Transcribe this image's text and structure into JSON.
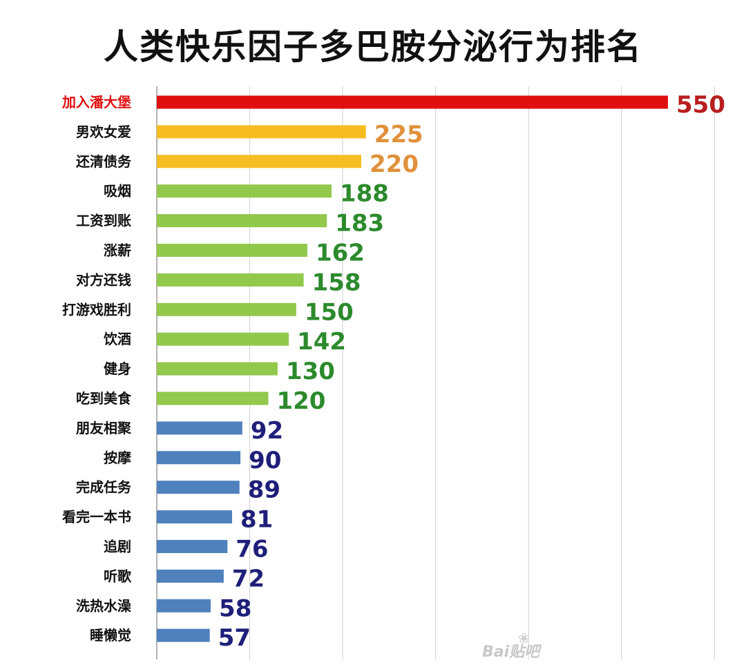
{
  "chart_data": {
    "type": "bar",
    "orientation": "horizontal",
    "title": "人类快乐因子多巴胺分泌行为排名",
    "categories": [
      "加入潘大堡",
      "男欢女爱",
      "还清债务",
      "吸烟",
      "工资到账",
      "涨薪",
      "对方还钱",
      "打游戏胜利",
      "饮酒",
      "健身",
      "吃到美食",
      "朋友相聚",
      "按摩",
      "完成任务",
      "看完一本书",
      "追剧",
      "听歌",
      "洗热水澡",
      "睡懒觉"
    ],
    "values": [
      550,
      225,
      220,
      188,
      183,
      162,
      158,
      150,
      142,
      130,
      120,
      92,
      90,
      89,
      81,
      76,
      72,
      58,
      57
    ],
    "value_labels": [
      "550",
      "225",
      "220",
      "188",
      "183",
      "162",
      "158",
      "150",
      "142",
      "130",
      "120",
      "92",
      "90",
      "89",
      "81",
      "76",
      "72",
      "58",
      "57"
    ],
    "bar_colors": [
      "#e01010",
      "#f5bd1f",
      "#f5bd1f",
      "#92c84c",
      "#92c84c",
      "#92c84c",
      "#92c84c",
      "#92c84c",
      "#92c84c",
      "#92c84c",
      "#92c84c",
      "#4f81bd",
      "#4f81bd",
      "#4f81bd",
      "#4f81bd",
      "#4f81bd",
      "#4f81bd",
      "#4f81bd",
      "#4f81bd"
    ],
    "value_label_colors": [
      "#b81e1e",
      "#e0913a",
      "#e0913a",
      "#2c8a2c",
      "#2c8a2c",
      "#2c8a2c",
      "#2c8a2c",
      "#2c8a2c",
      "#2c8a2c",
      "#2c8a2c",
      "#2c8a2c",
      "#1f1f7a",
      "#1f1f7a",
      "#1f1f7a",
      "#1f1f7a",
      "#1f1f7a",
      "#1f1f7a",
      "#1f1f7a",
      "#1f1f7a"
    ],
    "category_label_colors": [
      "#e01010",
      "#111111",
      "#111111",
      "#111111",
      "#111111",
      "#111111",
      "#111111",
      "#111111",
      "#111111",
      "#111111",
      "#111111",
      "#111111",
      "#111111",
      "#111111",
      "#111111",
      "#111111",
      "#111111",
      "#111111",
      "#111111"
    ],
    "xlim": [
      0,
      600
    ],
    "gridlines": true,
    "xlabel": "",
    "ylabel": ""
  },
  "watermark": {
    "text": "Bai贴吧",
    "icon": "paw-icon"
  }
}
